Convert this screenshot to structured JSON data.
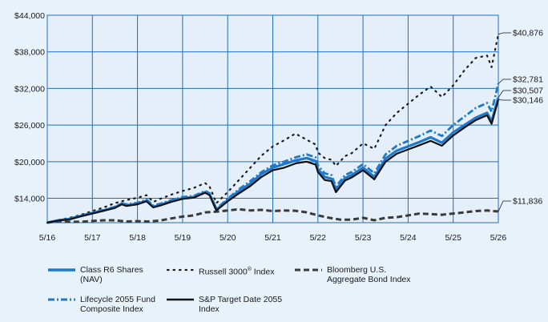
{
  "chart_data": {
    "type": "line",
    "x_ticks": [
      "5/16",
      "5/17",
      "5/18",
      "5/19",
      "5/20",
      "5/21",
      "5/22",
      "5/23",
      "5/24",
      "5/25",
      "5/26"
    ],
    "y_ticks": [
      "$14,000",
      "$20,000",
      "$26,000",
      "$32,000",
      "$38,000",
      "$44,000"
    ],
    "ylim": [
      10000,
      44000
    ],
    "grid": true,
    "series": [
      {
        "name": "Class R6 Shares (NAV)",
        "name_lines": [
          "Class R6 Shares",
          "(NAV)"
        ],
        "style": "solid-thick",
        "color": "#1f78c8",
        "end_label": "$30,507",
        "values": [
          [
            0.0,
            10000
          ],
          [
            0.25,
            10380
          ],
          [
            0.5,
            10600
          ],
          [
            0.75,
            11100
          ],
          [
            1.0,
            11550
          ],
          [
            1.25,
            12000
          ],
          [
            1.5,
            12500
          ],
          [
            1.65,
            13100
          ],
          [
            1.75,
            12850
          ],
          [
            2.0,
            13100
          ],
          [
            2.2,
            13600
          ],
          [
            2.35,
            12600
          ],
          [
            2.5,
            12900
          ],
          [
            2.75,
            13500
          ],
          [
            3.0,
            14000
          ],
          [
            3.25,
            14200
          ],
          [
            3.5,
            15000
          ],
          [
            3.6,
            14600
          ],
          [
            3.75,
            12100
          ],
          [
            4.0,
            13700
          ],
          [
            4.25,
            15200
          ],
          [
            4.5,
            16400
          ],
          [
            4.75,
            18000
          ],
          [
            5.0,
            19000
          ],
          [
            5.25,
            19600
          ],
          [
            5.5,
            20200
          ],
          [
            5.75,
            20600
          ],
          [
            5.95,
            20100
          ],
          [
            6.0,
            18800
          ],
          [
            6.15,
            17500
          ],
          [
            6.3,
            17200
          ],
          [
            6.4,
            15400
          ],
          [
            6.6,
            17300
          ],
          [
            6.75,
            17800
          ],
          [
            7.0,
            19000
          ],
          [
            7.25,
            17500
          ],
          [
            7.5,
            20500
          ],
          [
            7.75,
            21800
          ],
          [
            8.0,
            22500
          ],
          [
            8.25,
            23200
          ],
          [
            8.5,
            24000
          ],
          [
            8.75,
            23100
          ],
          [
            9.0,
            24800
          ],
          [
            9.25,
            26000
          ],
          [
            9.5,
            27200
          ],
          [
            9.75,
            28000
          ],
          [
            9.85,
            26600
          ],
          [
            10.0,
            30507
          ]
        ]
      },
      {
        "name": "Russell 3000® Index",
        "name_parts": [
          "Russell 3000",
          "®",
          " Index"
        ],
        "style": "dotted",
        "color": "#1a1a1a",
        "end_label": "$40,876",
        "values": [
          [
            0.0,
            10000
          ],
          [
            0.25,
            10450
          ],
          [
            0.5,
            10800
          ],
          [
            0.75,
            11300
          ],
          [
            1.0,
            11900
          ],
          [
            1.25,
            12500
          ],
          [
            1.5,
            13200
          ],
          [
            1.75,
            13700
          ],
          [
            2.0,
            14100
          ],
          [
            2.2,
            14500
          ],
          [
            2.35,
            13400
          ],
          [
            2.5,
            13900
          ],
          [
            2.75,
            14600
          ],
          [
            3.0,
            15200
          ],
          [
            3.25,
            15700
          ],
          [
            3.5,
            16500
          ],
          [
            3.6,
            15900
          ],
          [
            3.75,
            13200
          ],
          [
            4.0,
            15000
          ],
          [
            4.25,
            17000
          ],
          [
            4.5,
            19000
          ],
          [
            4.75,
            21000
          ],
          [
            5.0,
            22500
          ],
          [
            5.25,
            23500
          ],
          [
            5.5,
            24600
          ],
          [
            5.75,
            23600
          ],
          [
            5.95,
            22800
          ],
          [
            6.0,
            21500
          ],
          [
            6.15,
            20600
          ],
          [
            6.3,
            20300
          ],
          [
            6.4,
            19300
          ],
          [
            6.6,
            20900
          ],
          [
            6.75,
            21400
          ],
          [
            7.0,
            23000
          ],
          [
            7.25,
            22100
          ],
          [
            7.5,
            26000
          ],
          [
            7.75,
            28000
          ],
          [
            8.0,
            29500
          ],
          [
            8.25,
            31000
          ],
          [
            8.5,
            32300
          ],
          [
            8.75,
            30600
          ],
          [
            9.0,
            32500
          ],
          [
            9.25,
            35000
          ],
          [
            9.5,
            37000
          ],
          [
            9.75,
            37400
          ],
          [
            9.85,
            35500
          ],
          [
            10.0,
            40876
          ]
        ]
      },
      {
        "name": "Bloomberg U.S. Aggregate Bond Index",
        "name_lines": [
          "Bloomberg U.S.",
          "Aggregate Bond Index"
        ],
        "style": "dashed-thick",
        "color": "#3a3a3a",
        "end_label": "$11,836",
        "values": [
          [
            0.0,
            10000
          ],
          [
            0.25,
            10250
          ],
          [
            0.5,
            10150
          ],
          [
            0.75,
            10150
          ],
          [
            1.0,
            10280
          ],
          [
            1.25,
            10400
          ],
          [
            1.5,
            10400
          ],
          [
            1.75,
            10200
          ],
          [
            2.0,
            10250
          ],
          [
            2.25,
            10200
          ],
          [
            2.5,
            10350
          ],
          [
            2.75,
            10700
          ],
          [
            3.0,
            11000
          ],
          [
            3.25,
            11200
          ],
          [
            3.5,
            11700
          ],
          [
            3.75,
            11800
          ],
          [
            4.0,
            12000
          ],
          [
            4.25,
            12200
          ],
          [
            4.5,
            12000
          ],
          [
            4.75,
            12100
          ],
          [
            5.0,
            11900
          ],
          [
            5.25,
            12000
          ],
          [
            5.5,
            11950
          ],
          [
            5.75,
            11700
          ],
          [
            6.0,
            11200
          ],
          [
            6.25,
            10800
          ],
          [
            6.5,
            10500
          ],
          [
            6.75,
            10500
          ],
          [
            7.0,
            10800
          ],
          [
            7.25,
            10400
          ],
          [
            7.5,
            10800
          ],
          [
            7.75,
            10900
          ],
          [
            8.0,
            11200
          ],
          [
            8.25,
            11500
          ],
          [
            8.5,
            11400
          ],
          [
            8.75,
            11300
          ],
          [
            9.0,
            11500
          ],
          [
            9.25,
            11700
          ],
          [
            9.5,
            11900
          ],
          [
            9.75,
            12000
          ],
          [
            10.0,
            11836
          ]
        ]
      },
      {
        "name": "Lifecycle 2055 Fund Composite Index",
        "name_lines": [
          "Lifecycle 2055 Fund",
          "Composite Index"
        ],
        "style": "dashdot-thick",
        "color": "#1f78c8",
        "end_label": "$32,781",
        "values": [
          [
            0.0,
            10000
          ],
          [
            0.25,
            10400
          ],
          [
            0.5,
            10650
          ],
          [
            0.75,
            11150
          ],
          [
            1.0,
            11650
          ],
          [
            1.25,
            12100
          ],
          [
            1.5,
            12600
          ],
          [
            1.65,
            13200
          ],
          [
            1.75,
            13000
          ],
          [
            2.0,
            13250
          ],
          [
            2.2,
            13800
          ],
          [
            2.35,
            12800
          ],
          [
            2.5,
            13100
          ],
          [
            2.75,
            13700
          ],
          [
            3.0,
            14200
          ],
          [
            3.25,
            14400
          ],
          [
            3.5,
            15200
          ],
          [
            3.6,
            14800
          ],
          [
            3.75,
            12300
          ],
          [
            4.0,
            13900
          ],
          [
            4.25,
            15500
          ],
          [
            4.5,
            16800
          ],
          [
            4.75,
            18300
          ],
          [
            5.0,
            19400
          ],
          [
            5.25,
            20000
          ],
          [
            5.5,
            20700
          ],
          [
            5.75,
            21200
          ],
          [
            5.95,
            20700
          ],
          [
            6.0,
            19400
          ],
          [
            6.15,
            18100
          ],
          [
            6.3,
            17800
          ],
          [
            6.4,
            15900
          ],
          [
            6.6,
            17800
          ],
          [
            6.75,
            18300
          ],
          [
            7.0,
            19600
          ],
          [
            7.25,
            18100
          ],
          [
            7.5,
            21200
          ],
          [
            7.75,
            22600
          ],
          [
            8.0,
            23400
          ],
          [
            8.25,
            24200
          ],
          [
            8.5,
            25100
          ],
          [
            8.75,
            24200
          ],
          [
            9.0,
            26000
          ],
          [
            9.25,
            27400
          ],
          [
            9.5,
            28800
          ],
          [
            9.75,
            29600
          ],
          [
            9.85,
            28200
          ],
          [
            10.0,
            32781
          ]
        ]
      },
      {
        "name": "S&P Target Date 2055 Index",
        "name_lines": [
          "S&P Target Date 2055",
          "Index"
        ],
        "style": "solid-black",
        "color": "#111111",
        "end_label": "$30,146",
        "values": [
          [
            0.0,
            10000
          ],
          [
            0.25,
            10350
          ],
          [
            0.5,
            10550
          ],
          [
            0.75,
            11050
          ],
          [
            1.0,
            11500
          ],
          [
            1.25,
            11950
          ],
          [
            1.5,
            12400
          ],
          [
            1.65,
            13000
          ],
          [
            1.75,
            12750
          ],
          [
            2.0,
            13000
          ],
          [
            2.2,
            13500
          ],
          [
            2.35,
            12500
          ],
          [
            2.5,
            12800
          ],
          [
            2.75,
            13400
          ],
          [
            3.0,
            13900
          ],
          [
            3.25,
            14100
          ],
          [
            3.5,
            14900
          ],
          [
            3.6,
            14500
          ],
          [
            3.75,
            12000
          ],
          [
            4.0,
            13500
          ],
          [
            4.25,
            14800
          ],
          [
            4.5,
            16000
          ],
          [
            4.75,
            17500
          ],
          [
            5.0,
            18600
          ],
          [
            5.25,
            19000
          ],
          [
            5.5,
            19700
          ],
          [
            5.75,
            20000
          ],
          [
            5.95,
            19500
          ],
          [
            6.0,
            18300
          ],
          [
            6.15,
            17000
          ],
          [
            6.3,
            16800
          ],
          [
            6.4,
            15000
          ],
          [
            6.6,
            16900
          ],
          [
            6.75,
            17400
          ],
          [
            7.0,
            18600
          ],
          [
            7.25,
            17100
          ],
          [
            7.5,
            20000
          ],
          [
            7.75,
            21300
          ],
          [
            8.0,
            22000
          ],
          [
            8.25,
            22700
          ],
          [
            8.5,
            23400
          ],
          [
            8.75,
            22600
          ],
          [
            9.0,
            24300
          ],
          [
            9.25,
            25600
          ],
          [
            9.5,
            26800
          ],
          [
            9.75,
            27600
          ],
          [
            9.85,
            26200
          ],
          [
            10.0,
            30146
          ]
        ]
      }
    ]
  }
}
